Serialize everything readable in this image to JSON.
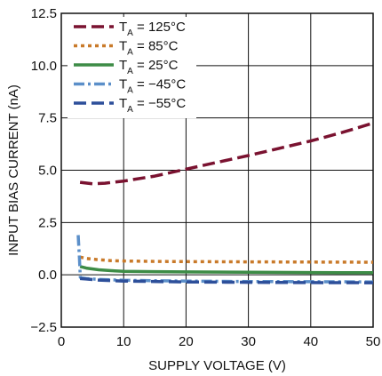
{
  "chart_data": {
    "type": "line",
    "xlabel": "SUPPLY VOLTAGE (V)",
    "ylabel": "INPUT BIAS CURRENT (nA)",
    "xlim": [
      0,
      50
    ],
    "ylim": [
      -2.5,
      12.5
    ],
    "xticks": [
      "0",
      "10",
      "20",
      "30",
      "40",
      "50"
    ],
    "yticks": [
      "−2.5",
      "0.0",
      "2.5",
      "5.0",
      "7.5",
      "10.0",
      "12.5"
    ],
    "grid": true,
    "legend_position": "top-left",
    "series": [
      {
        "name": "T",
        "subscript": "A",
        "suffix": " = 125°C",
        "color": "#7a1230",
        "dash": "long-dash",
        "x": [
          3,
          5,
          7,
          10,
          15,
          20,
          25,
          30,
          35,
          40,
          45,
          50
        ],
        "y": [
          4.42,
          4.35,
          4.38,
          4.48,
          4.72,
          5.05,
          5.38,
          5.7,
          6.05,
          6.4,
          6.8,
          7.25
        ]
      },
      {
        "name": "T",
        "subscript": "A",
        "suffix": " = 85°C",
        "color": "#c97a2a",
        "dash": "dot",
        "x": [
          3,
          4,
          6,
          8,
          10,
          15,
          20,
          30,
          40,
          50
        ],
        "y": [
          0.85,
          0.78,
          0.72,
          0.68,
          0.66,
          0.64,
          0.63,
          0.62,
          0.61,
          0.6
        ]
      },
      {
        "name": "T",
        "subscript": "A",
        "suffix": " = 25°C",
        "color": "#3d8c46",
        "dash": "solid",
        "x": [
          3,
          4,
          6,
          8,
          10,
          15,
          20,
          30,
          40,
          50
        ],
        "y": [
          0.4,
          0.32,
          0.24,
          0.2,
          0.17,
          0.15,
          0.14,
          0.12,
          0.11,
          0.1
        ]
      },
      {
        "name": "T",
        "subscript": "A",
        "suffix": " = −45°C",
        "color": "#5b8fc9",
        "dash": "dash-dot",
        "x": [
          2.7,
          2.9,
          3.05,
          3.3,
          4,
          6,
          10,
          20,
          30,
          40,
          50
        ],
        "y": [
          1.9,
          0.8,
          -0.12,
          -0.15,
          -0.18,
          -0.22,
          -0.26,
          -0.3,
          -0.32,
          -0.33,
          -0.34
        ]
      },
      {
        "name": "T",
        "subscript": "A",
        "suffix": " = −55°C",
        "color": "#2d4f9a",
        "dash": "long-dash",
        "x": [
          3,
          4,
          6,
          10,
          20,
          30,
          40,
          50
        ],
        "y": [
          -0.18,
          -0.2,
          -0.25,
          -0.3,
          -0.34,
          -0.36,
          -0.37,
          -0.38
        ]
      }
    ]
  }
}
